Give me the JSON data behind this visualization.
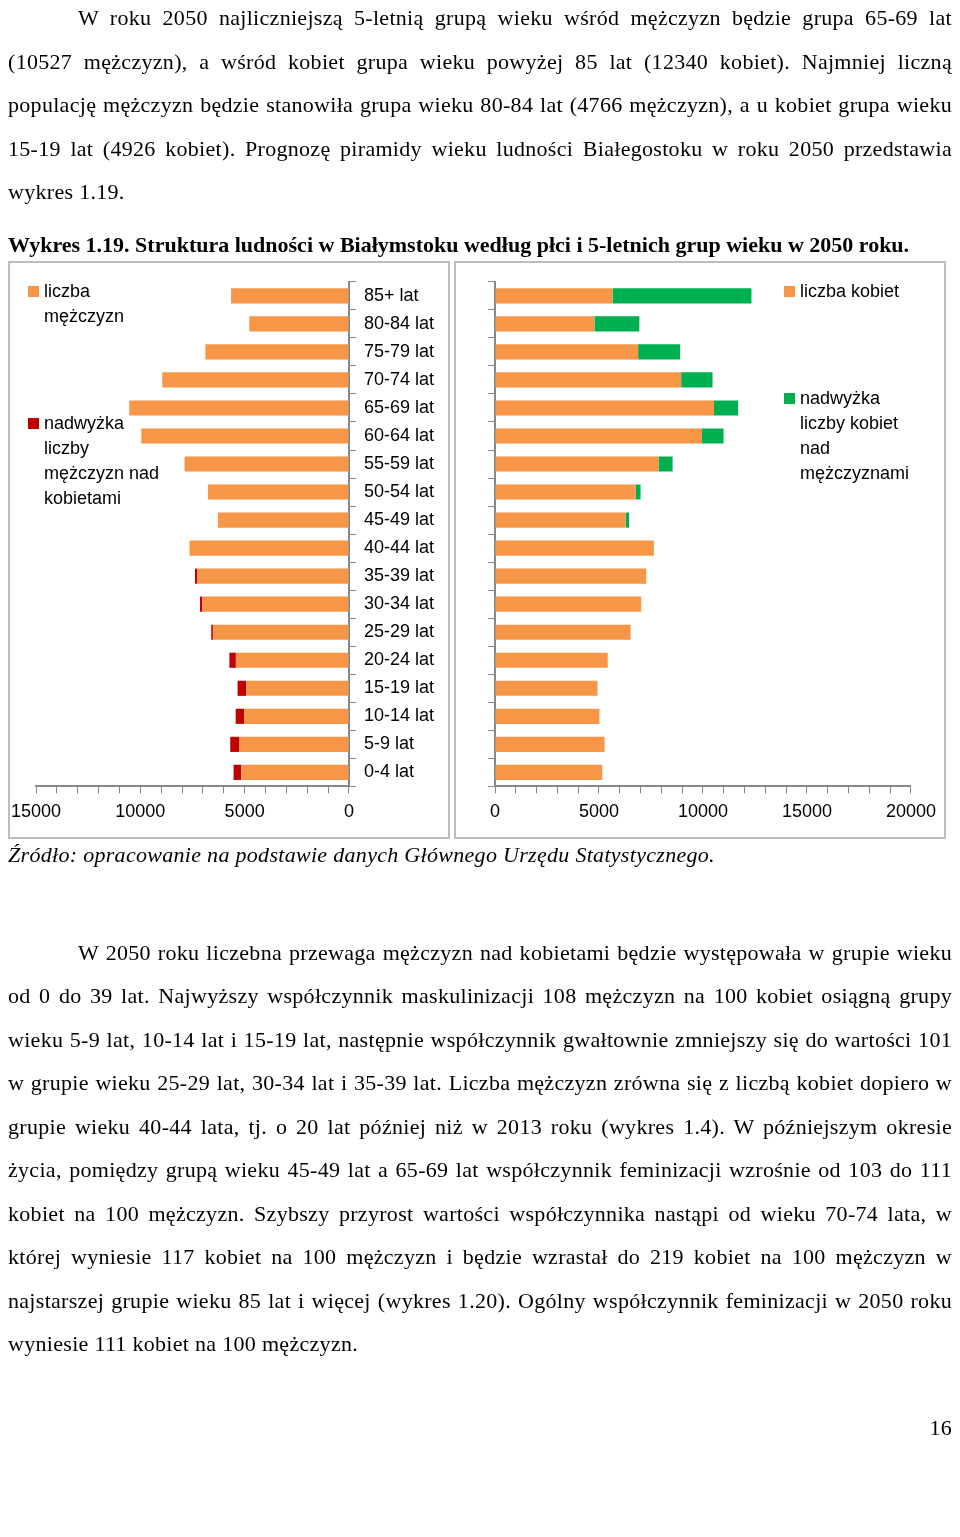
{
  "chart_data": [
    {
      "type": "bar",
      "orientation": "horizontal",
      "stacked": true,
      "title": "Wykres 1.19.  Struktura ludności w Białymstoku według płci i 5-letnich grup wieku w 2050 roku.",
      "annotations": [
        "W roku 2050 najliczniejszą 5-letnią grupą wieku wśród mężczyzn będzie grupa 65-69 lat (10527 mężczyzn), a wśród kobiet grupa wieku powyżej 85 lat (12340 kobiet). Najmniej liczną populację mężczyzn będzie stanowiła grupa wieku 80-84 lat (4766 mężczyzn), a u kobiet grupa wieku 15-19 lat (4926 kobiet). Prognozę piramidy wieku ludności Białegostoku w roku 2050  przedstawia wykres 1.19.",
        "Źródło: opracowanie na podstawie danych Głównego Urzędu Statystycznego.",
        "W 2050 roku liczebna przewaga mężczyzn nad kobietami będzie występowała w grupie wieku od 0 do 39 lat. Najwyższy współczynnik maskulinizacji 108 mężczyzn na 100 kobiet osiągną grupy wieku 5-9 lat, 10-14 lat i 15-19 lat, następnie współczynnik gwałtownie zmniejszy się do wartości 101 w grupie wieku 25-29 lat, 30-34 lat i 35-39 lat. Liczba mężczyzn zrówna się z liczbą kobiet dopiero w grupie wieku 40-44 lata, tj. o 20 lat później niż w 2013 roku (wykres 1.4). W późniejszym okresie życia, pomiędzy grupą wieku 45-49 lat a 65-69 lat współczynnik feminizacji wzrośnie od 103 do 111 kobiet na 100 mężczyzn. Szybszy przyrost wartości współczynnika  nastąpi od wieku 70-74 lata, w której wyniesie 117 kobiet na 100 mężczyzn  i będzie wzrastał do 219 kobiet na 100 mężczyzn w najstarszej grupie wieku 85 lat i więcej (wykres 1.20). Ogólny współczynnik feminizacji w 2050 roku wyniesie 111 kobiet na 100 mężczyzn.",
        "16"
      ],
      "categories": [
        "85+ lat",
        "80-84 lat",
        "75-79 lat",
        "70-74 lat",
        "65-69 lat",
        "60-64 lat",
        "55-59 lat",
        "50-54 lat",
        "45-49 lat",
        "40-44 lat",
        "35-39 lat",
        "30-34 lat",
        "25-29 lat",
        "20-24 lat",
        "15-19 lat",
        "10-14 lat",
        "5-9 lat",
        "0-4 lat"
      ],
      "series": [
        {
          "name": "liczba mężczyzn",
          "color": "#f79646",
          "values": [
            5650,
            4780,
            6880,
            8950,
            10530,
            9950,
            7880,
            6760,
            6280,
            7640,
            7270,
            7030,
            6520,
            5420,
            4930,
            5020,
            5270,
            5160
          ]
        },
        {
          "name": "nadwyżka liczby mężczyzn nad kobietami",
          "color": "#c00000",
          "values": [
            null,
            null,
            null,
            null,
            null,
            null,
            null,
            null,
            null,
            null,
            110,
            110,
            80,
            310,
            410,
            410,
            420,
            370
          ]
        }
      ],
      "xlim": [
        15000,
        0
      ],
      "xticks": [
        {
          "value": 0,
          "label": "0"
        },
        {
          "value": 1000,
          "label": null
        },
        {
          "value": 2000,
          "label": null
        },
        {
          "value": 3000,
          "label": null
        },
        {
          "value": 4000,
          "label": null
        },
        {
          "value": 5000,
          "label": "5000"
        },
        {
          "value": 6000,
          "label": null
        },
        {
          "value": 7000,
          "label": null
        },
        {
          "value": 8000,
          "label": null
        },
        {
          "value": 9000,
          "label": null
        },
        {
          "value": 10000,
          "label": "10000"
        },
        {
          "value": 11000,
          "label": null
        },
        {
          "value": 12000,
          "label": null
        },
        {
          "value": 13000,
          "label": null
        },
        {
          "value": 14000,
          "label": null
        },
        {
          "value": 15000,
          "label": "15000"
        }
      ],
      "legend": "top left"
    },
    {
      "type": "bar",
      "orientation": "horizontal",
      "stacked": true,
      "categories": [
        null,
        null,
        null,
        null,
        null,
        null,
        null,
        null,
        null,
        null,
        null,
        null,
        null,
        null,
        null,
        null,
        null,
        null
      ],
      "series": [
        {
          "name": "liczba kobiet",
          "color": "#f79646",
          "values": [
            5650,
            4780,
            6880,
            8950,
            10530,
            9950,
            7880,
            6760,
            6280,
            7640,
            7270,
            7030,
            6520,
            5420,
            4930,
            5020,
            5270,
            5160
          ]
        },
        {
          "name": "nadwyżka liczby kobiet nad mężczyznami",
          "color": "#00b050",
          "values": [
            6680,
            2160,
            2020,
            1510,
            1160,
            1040,
            660,
            240,
            170,
            null,
            null,
            null,
            null,
            null,
            null,
            null,
            null,
            null
          ]
        }
      ],
      "xlim": [
        0,
        20000
      ],
      "xticks": [
        {
          "value": 0,
          "label": "0"
        },
        {
          "value": 1000,
          "label": null
        },
        {
          "value": 2000,
          "label": null
        },
        {
          "value": 3000,
          "label": null
        },
        {
          "value": 4000,
          "label": null
        },
        {
          "value": 5000,
          "label": "5000"
        },
        {
          "value": 6000,
          "label": null
        },
        {
          "value": 7000,
          "label": null
        },
        {
          "value": 8000,
          "label": null
        },
        {
          "value": 9000,
          "label": null
        },
        {
          "value": 10000,
          "label": "10000"
        },
        {
          "value": 11000,
          "label": null
        },
        {
          "value": 12000,
          "label": null
        },
        {
          "value": 13000,
          "label": null
        },
        {
          "value": 14000,
          "label": null
        },
        {
          "value": 15000,
          "label": "15000"
        },
        {
          "value": 16000,
          "label": null
        },
        {
          "value": 17000,
          "label": null
        },
        {
          "value": 18000,
          "label": null
        },
        {
          "value": 19000,
          "label": null
        },
        {
          "value": 20000,
          "label": "20000"
        }
      ],
      "legend": "top right"
    }
  ]
}
